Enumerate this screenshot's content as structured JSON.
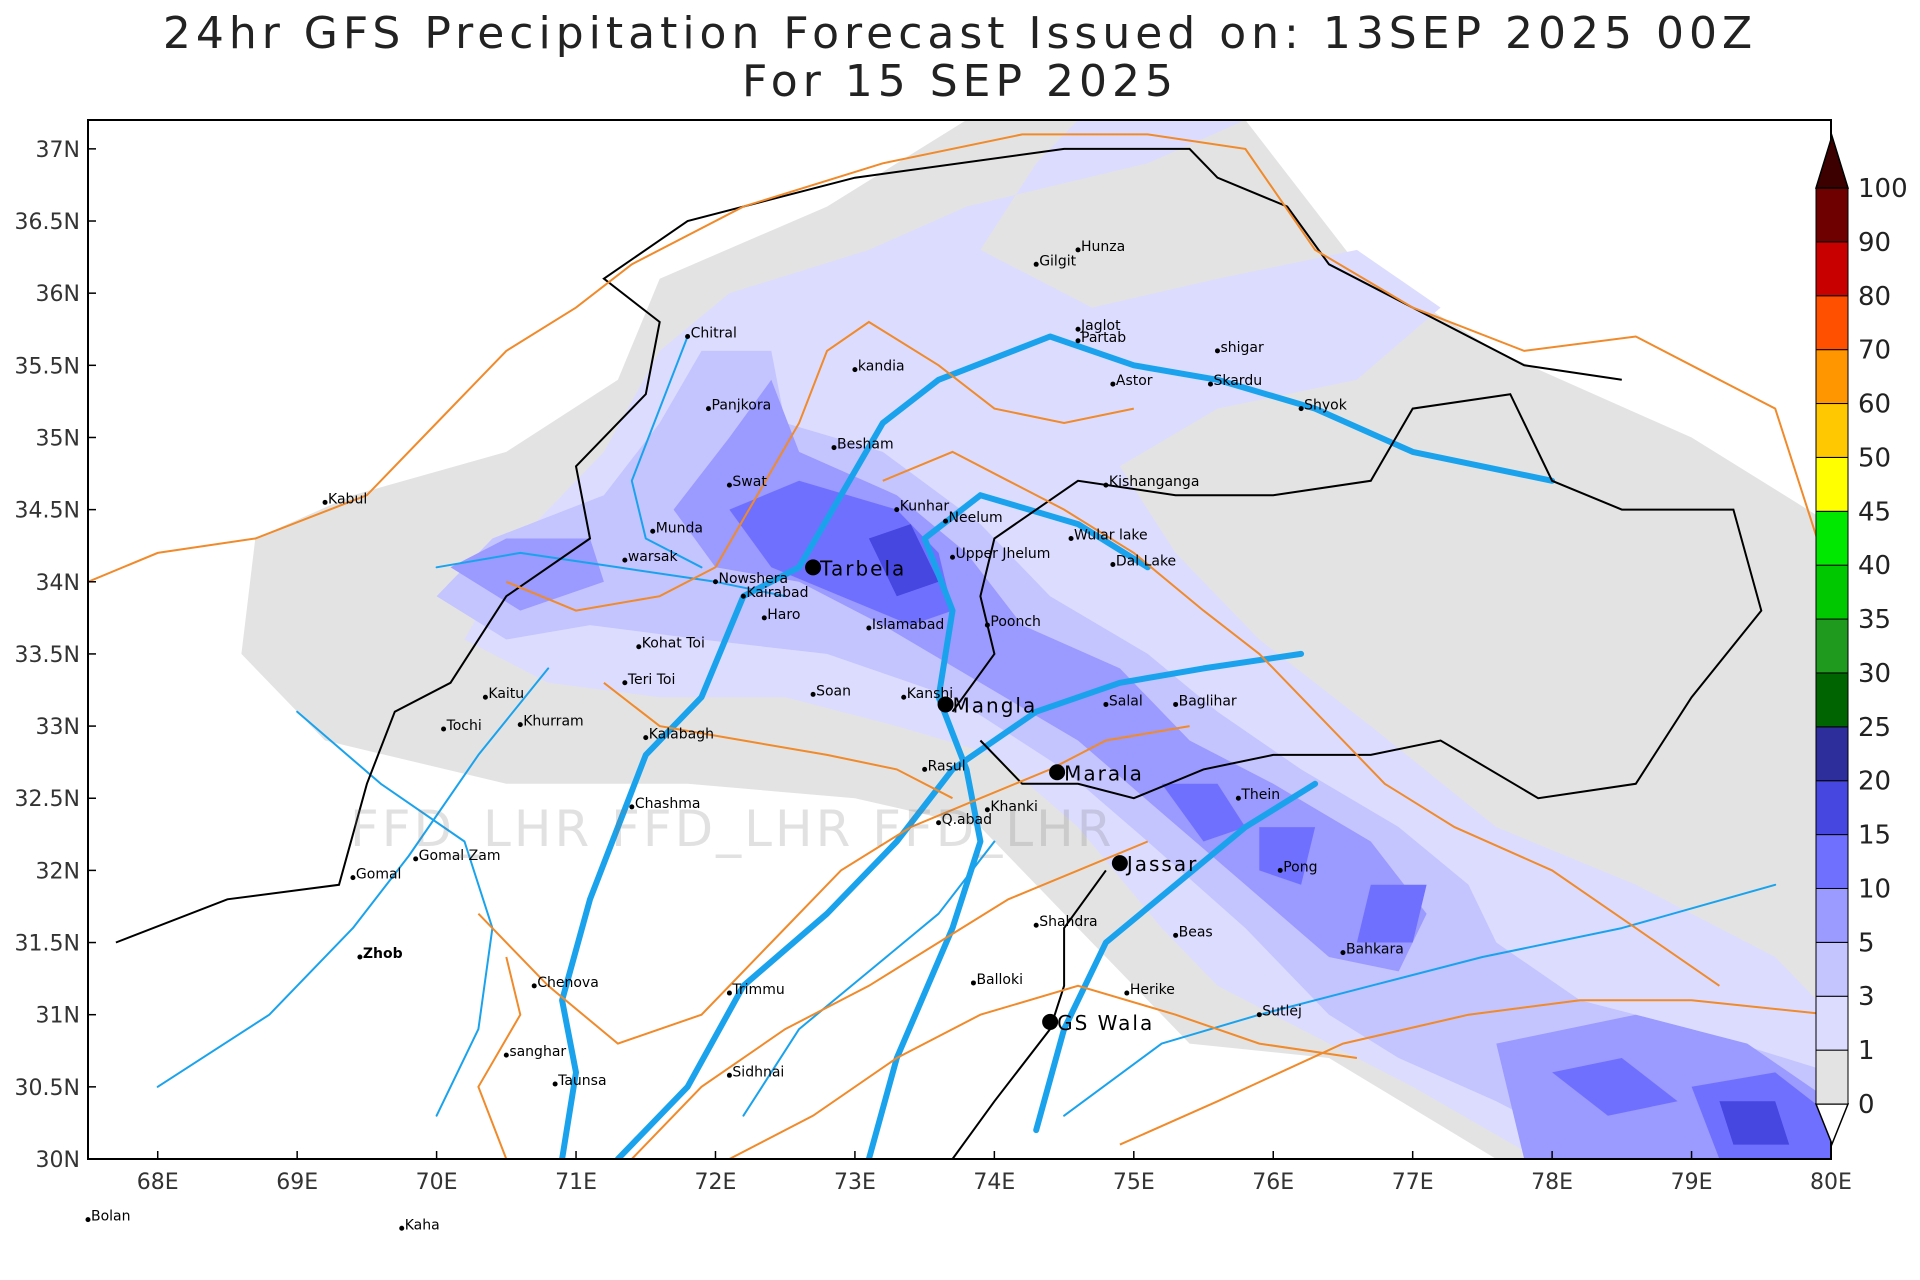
{
  "title": {
    "line1": "24hr GFS Precipitation Forecast Issued on:  13SEP 2025 00Z",
    "line2": "For 15 SEP 2025"
  },
  "watermark": "FFD_LHR FFD_LHR FFD_LHR",
  "map": {
    "lon_range": [
      67.5,
      80
    ],
    "lat_range": [
      30,
      37.2
    ],
    "lon_ticks": [
      "68E",
      "69E",
      "70E",
      "71E",
      "72E",
      "73E",
      "74E",
      "75E",
      "76E",
      "77E",
      "78E",
      "79E",
      "80E"
    ],
    "lat_ticks": [
      "30N",
      "30.5N",
      "31N",
      "31.5N",
      "32N",
      "32.5N",
      "33N",
      "33.5N",
      "34N",
      "34.5N",
      "35N",
      "35.5N",
      "36N",
      "36.5N",
      "37N"
    ]
  },
  "colorbar": {
    "labels": [
      "0",
      "1",
      "3",
      "5",
      "10",
      "15",
      "20",
      "25",
      "30",
      "35",
      "40",
      "45",
      "50",
      "60",
      "70",
      "80",
      "90",
      "100"
    ],
    "colors": [
      "#ffffff",
      "#e3e3e3",
      "#dcdcff",
      "#c4c4ff",
      "#9a9aff",
      "#7070ff",
      "#4646e0",
      "#2d2d9c",
      "#006400",
      "#1f9a1f",
      "#00c800",
      "#00e800",
      "#ffff00",
      "#ffc800",
      "#ff9600",
      "#ff5000",
      "#c80000",
      "#6e0000",
      "#3c0000"
    ]
  },
  "places": [
    {
      "name": "Chitral",
      "lon": 71.8,
      "lat": 35.7,
      "bold": false
    },
    {
      "name": "Gilgit",
      "lon": 74.3,
      "lat": 36.2,
      "bold": false
    },
    {
      "name": "Hunza",
      "lon": 74.6,
      "lat": 36.3,
      "bold": false
    },
    {
      "name": "Jaglot",
      "lon": 74.6,
      "lat": 35.75,
      "bold": false
    },
    {
      "name": "Partab",
      "lon": 74.6,
      "lat": 35.67,
      "bold": false
    },
    {
      "name": "shigar",
      "lon": 75.6,
      "lat": 35.6,
      "bold": false
    },
    {
      "name": "kandia",
      "lon": 73.0,
      "lat": 35.47,
      "bold": false
    },
    {
      "name": "Astor",
      "lon": 74.85,
      "lat": 35.37,
      "bold": false
    },
    {
      "name": "Skardu",
      "lon": 75.55,
      "lat": 35.37,
      "bold": false
    },
    {
      "name": "Shyok",
      "lon": 76.2,
      "lat": 35.2,
      "bold": false
    },
    {
      "name": "Panjkora",
      "lon": 71.95,
      "lat": 35.2,
      "bold": false
    },
    {
      "name": "Besham",
      "lon": 72.85,
      "lat": 34.93,
      "bold": false
    },
    {
      "name": "Kabul",
      "lon": 69.2,
      "lat": 34.55,
      "bold": false
    },
    {
      "name": "Swat",
      "lon": 72.1,
      "lat": 34.67,
      "bold": false
    },
    {
      "name": "Kishanganga",
      "lon": 74.8,
      "lat": 34.67,
      "bold": false
    },
    {
      "name": "Kunhar",
      "lon": 73.3,
      "lat": 34.5,
      "bold": false
    },
    {
      "name": "Neelum",
      "lon": 73.65,
      "lat": 34.42,
      "bold": false
    },
    {
      "name": "Munda",
      "lon": 71.55,
      "lat": 34.35,
      "bold": false
    },
    {
      "name": "Wular lake",
      "lon": 74.55,
      "lat": 34.3,
      "bold": false
    },
    {
      "name": "warsak",
      "lon": 71.35,
      "lat": 34.15,
      "bold": false
    },
    {
      "name": "Upper Jhelum",
      "lon": 73.7,
      "lat": 34.17,
      "bold": false
    },
    {
      "name": "Dal Lake",
      "lon": 74.85,
      "lat": 34.12,
      "bold": false
    },
    {
      "name": "Nowshera",
      "lon": 72.0,
      "lat": 34.0,
      "bold": false
    },
    {
      "name": "Kairabad",
      "lon": 72.2,
      "lat": 33.9,
      "bold": false
    },
    {
      "name": "Haro",
      "lon": 72.35,
      "lat": 33.75,
      "bold": false
    },
    {
      "name": "Islamabad",
      "lon": 73.1,
      "lat": 33.68,
      "bold": false
    },
    {
      "name": "Poonch",
      "lon": 73.95,
      "lat": 33.7,
      "bold": false
    },
    {
      "name": "Kohat Toi",
      "lon": 71.45,
      "lat": 33.55,
      "bold": false
    },
    {
      "name": "Teri Toi",
      "lon": 71.35,
      "lat": 33.3,
      "bold": false
    },
    {
      "name": "Soan",
      "lon": 72.7,
      "lat": 33.22,
      "bold": false
    },
    {
      "name": "Kanshi",
      "lon": 73.35,
      "lat": 33.2,
      "bold": false
    },
    {
      "name": "Salal",
      "lon": 74.8,
      "lat": 33.15,
      "bold": false
    },
    {
      "name": "Baglihar",
      "lon": 75.3,
      "lat": 33.15,
      "bold": false
    },
    {
      "name": "Kaitu",
      "lon": 70.35,
      "lat": 33.2,
      "bold": false
    },
    {
      "name": "Tochi",
      "lon": 70.05,
      "lat": 32.98,
      "bold": false
    },
    {
      "name": "Khurram",
      "lon": 70.6,
      "lat": 33.01,
      "bold": false
    },
    {
      "name": "Kalabagh",
      "lon": 71.5,
      "lat": 32.92,
      "bold": false
    },
    {
      "name": "Rasul",
      "lon": 73.5,
      "lat": 32.7,
      "bold": false
    },
    {
      "name": "Thein",
      "lon": 75.75,
      "lat": 32.5,
      "bold": false
    },
    {
      "name": "Chashma",
      "lon": 71.4,
      "lat": 32.44,
      "bold": false
    },
    {
      "name": "Khanki",
      "lon": 73.95,
      "lat": 32.42,
      "bold": false
    },
    {
      "name": "Q.abad",
      "lon": 73.6,
      "lat": 32.33,
      "bold": false
    },
    {
      "name": "Gomal Zam",
      "lon": 69.85,
      "lat": 32.08,
      "bold": false
    },
    {
      "name": "Gomal",
      "lon": 69.4,
      "lat": 31.95,
      "bold": false
    },
    {
      "name": "Pong",
      "lon": 76.05,
      "lat": 32.0,
      "bold": false
    },
    {
      "name": "Shahdra",
      "lon": 74.3,
      "lat": 31.62,
      "bold": false
    },
    {
      "name": "Beas",
      "lon": 75.3,
      "lat": 31.55,
      "bold": false
    },
    {
      "name": "Bahkara",
      "lon": 76.5,
      "lat": 31.43,
      "bold": false
    },
    {
      "name": "Zhob",
      "lon": 69.45,
      "lat": 31.4,
      "bold": true
    },
    {
      "name": "Balloki",
      "lon": 73.85,
      "lat": 31.22,
      "bold": false
    },
    {
      "name": "Herike",
      "lon": 74.95,
      "lat": 31.15,
      "bold": false
    },
    {
      "name": "Chenova",
      "lon": 70.7,
      "lat": 31.2,
      "bold": false
    },
    {
      "name": "Trimmu",
      "lon": 72.1,
      "lat": 31.15,
      "bold": false
    },
    {
      "name": "Sutlej",
      "lon": 75.9,
      "lat": 31.0,
      "bold": false
    },
    {
      "name": "sanghar",
      "lon": 70.5,
      "lat": 30.72,
      "bold": false
    },
    {
      "name": "Sidhnai",
      "lon": 72.1,
      "lat": 30.58,
      "bold": false
    },
    {
      "name": "Taunsa",
      "lon": 70.85,
      "lat": 30.52,
      "bold": false
    },
    {
      "name": "Bolan",
      "lon": 67.5,
      "lat": 29.58,
      "bold": false
    },
    {
      "name": "Kaha",
      "lon": 69.75,
      "lat": 29.52,
      "bold": false
    }
  ],
  "dams": [
    {
      "name": "Tarbela",
      "lon": 72.7,
      "lat": 34.1
    },
    {
      "name": "Mangla",
      "lon": 73.65,
      "lat": 33.15
    },
    {
      "name": "Marala",
      "lon": 74.45,
      "lat": 32.68
    },
    {
      "name": "Jassar",
      "lon": 74.9,
      "lat": 32.05
    },
    {
      "name": "GS Wala",
      "lon": 74.4,
      "lat": 30.95
    }
  ],
  "precip_zones": [
    {
      "level": 1,
      "pts": [
        [
          69.4,
          34.6
        ],
        [
          70.5,
          34.9
        ],
        [
          71.3,
          35.4
        ],
        [
          71.6,
          36.1
        ],
        [
          72.8,
          36.6
        ],
        [
          73.8,
          37.2
        ],
        [
          75.8,
          37.2
        ],
        [
          76.6,
          36.2
        ],
        [
          77.6,
          35.6
        ],
        [
          79.0,
          35.0
        ],
        [
          80,
          34.4
        ],
        [
          80,
          30
        ],
        [
          77.6,
          30
        ],
        [
          76.4,
          30.7
        ],
        [
          75.4,
          30.8
        ],
        [
          74.6,
          31.6
        ],
        [
          73.9,
          32.3
        ],
        [
          73.0,
          32.5
        ],
        [
          71.8,
          32.6
        ],
        [
          70.5,
          32.6
        ],
        [
          69.2,
          32.9
        ],
        [
          68.6,
          33.5
        ],
        [
          68.7,
          34.3
        ]
      ]
    },
    {
      "level": 2,
      "pts": [
        [
          70.2,
          33.6
        ],
        [
          70.6,
          34.3
        ],
        [
          71.2,
          34.9
        ],
        [
          71.6,
          35.6
        ],
        [
          72.1,
          36.0
        ],
        [
          73.1,
          36.3
        ],
        [
          73.8,
          36.6
        ],
        [
          75.1,
          36.9
        ],
        [
          75.8,
          37.2
        ],
        [
          74.6,
          37.2
        ],
        [
          74.3,
          36.9
        ],
        [
          73.9,
          36.3
        ],
        [
          74.7,
          35.9
        ],
        [
          75.6,
          36.1
        ],
        [
          76.6,
          36.3
        ],
        [
          77.2,
          35.9
        ],
        [
          76.6,
          35.4
        ],
        [
          75.6,
          35.2
        ],
        [
          74.9,
          34.8
        ],
        [
          75.3,
          34.2
        ],
        [
          75.9,
          33.6
        ],
        [
          76.7,
          33.0
        ],
        [
          77.6,
          32.3
        ],
        [
          78.6,
          31.9
        ],
        [
          79.6,
          31.4
        ],
        [
          80,
          31.0
        ],
        [
          80,
          30
        ],
        [
          77.9,
          30
        ],
        [
          77.0,
          30.5
        ],
        [
          76.2,
          30.9
        ],
        [
          75.6,
          31.2
        ],
        [
          75.2,
          31.6
        ],
        [
          74.6,
          32.3
        ],
        [
          74.0,
          32.8
        ],
        [
          73.3,
          33.0
        ],
        [
          72.5,
          33.2
        ],
        [
          71.6,
          33.2
        ],
        [
          70.8,
          33.3
        ]
      ]
    },
    {
      "level": 3,
      "pts": [
        [
          70.0,
          33.9
        ],
        [
          70.4,
          34.3
        ],
        [
          71.2,
          34.6
        ],
        [
          71.6,
          35.1
        ],
        [
          71.9,
          35.6
        ],
        [
          72.4,
          35.6
        ],
        [
          72.5,
          35.1
        ],
        [
          73.2,
          34.9
        ],
        [
          73.9,
          34.4
        ],
        [
          74.4,
          33.9
        ],
        [
          75.1,
          33.5
        ],
        [
          75.6,
          33.1
        ],
        [
          76.2,
          32.7
        ],
        [
          76.9,
          32.3
        ],
        [
          77.4,
          31.9
        ],
        [
          77.6,
          31.5
        ],
        [
          78.2,
          31.1
        ],
        [
          79.0,
          30.9
        ],
        [
          80,
          30.6
        ],
        [
          80,
          30
        ],
        [
          78.4,
          30
        ],
        [
          77.6,
          30.4
        ],
        [
          76.9,
          30.7
        ],
        [
          76.4,
          31.0
        ],
        [
          75.8,
          31.6
        ],
        [
          75.1,
          32.2
        ],
        [
          74.5,
          32.7
        ],
        [
          73.7,
          33.2
        ],
        [
          72.8,
          33.5
        ],
        [
          71.9,
          33.6
        ],
        [
          71.1,
          33.7
        ],
        [
          70.5,
          33.6
        ]
      ]
    },
    {
      "level": 4,
      "pts": [
        [
          71.7,
          34.5
        ],
        [
          72.1,
          35.0
        ],
        [
          72.4,
          35.4
        ],
        [
          72.6,
          34.9
        ],
        [
          73.3,
          34.6
        ],
        [
          73.8,
          34.2
        ],
        [
          74.2,
          33.7
        ],
        [
          74.9,
          33.4
        ],
        [
          75.4,
          32.9
        ],
        [
          76.0,
          32.6
        ],
        [
          76.7,
          32.2
        ],
        [
          77.1,
          31.7
        ],
        [
          76.9,
          31.3
        ],
        [
          76.4,
          31.4
        ],
        [
          75.8,
          31.9
        ],
        [
          75.2,
          32.4
        ],
        [
          74.6,
          32.9
        ],
        [
          73.9,
          33.3
        ],
        [
          73.2,
          33.7
        ],
        [
          72.6,
          34.0
        ],
        [
          72.0,
          34.1
        ]
      ]
    },
    {
      "level": 4,
      "pts": [
        [
          70.1,
          34.1
        ],
        [
          70.5,
          34.3
        ],
        [
          71.1,
          34.3
        ],
        [
          71.2,
          34.0
        ],
        [
          70.6,
          33.8
        ]
      ]
    },
    {
      "level": 5,
      "pts": [
        [
          72.1,
          34.5
        ],
        [
          72.6,
          34.7
        ],
        [
          73.3,
          34.5
        ],
        [
          73.6,
          34.2
        ],
        [
          73.7,
          33.8
        ],
        [
          73.4,
          33.7
        ],
        [
          72.9,
          33.9
        ],
        [
          72.4,
          34.1
        ]
      ]
    },
    {
      "level": 5,
      "pts": [
        [
          75.2,
          32.6
        ],
        [
          75.6,
          32.6
        ],
        [
          75.8,
          32.3
        ],
        [
          75.5,
          32.2
        ]
      ]
    },
    {
      "level": 5,
      "pts": [
        [
          75.9,
          32.3
        ],
        [
          76.3,
          32.3
        ],
        [
          76.2,
          31.9
        ],
        [
          75.9,
          32.0
        ]
      ]
    },
    {
      "level": 5,
      "pts": [
        [
          76.7,
          31.9
        ],
        [
          77.1,
          31.9
        ],
        [
          77.0,
          31.5
        ],
        [
          76.6,
          31.5
        ]
      ]
    },
    {
      "level": 4,
      "pts": [
        [
          77.6,
          30.8
        ],
        [
          78.6,
          31.0
        ],
        [
          79.4,
          30.8
        ],
        [
          80,
          30.4
        ],
        [
          80,
          30
        ],
        [
          77.8,
          30
        ]
      ]
    },
    {
      "level": 5,
      "pts": [
        [
          78.0,
          30.6
        ],
        [
          78.5,
          30.7
        ],
        [
          78.9,
          30.4
        ],
        [
          78.4,
          30.3
        ]
      ]
    },
    {
      "level": 5,
      "pts": [
        [
          79.0,
          30.5
        ],
        [
          79.6,
          30.6
        ],
        [
          80,
          30.3
        ],
        [
          80,
          30
        ],
        [
          79.2,
          30
        ]
      ]
    },
    {
      "level": 6,
      "pts": [
        [
          79.2,
          30.4
        ],
        [
          79.6,
          30.4
        ],
        [
          79.7,
          30.1
        ],
        [
          79.3,
          30.1
        ]
      ]
    },
    {
      "level": 6,
      "pts": [
        [
          73.1,
          34.3
        ],
        [
          73.4,
          34.4
        ],
        [
          73.6,
          34.0
        ],
        [
          73.3,
          33.9
        ]
      ]
    }
  ]
}
